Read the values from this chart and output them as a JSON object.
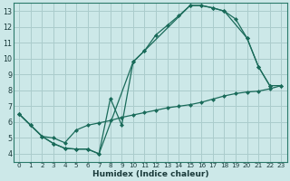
{
  "xlabel": "Humidex (Indice chaleur)",
  "bg_color": "#cce8e8",
  "grid_color": "#aacccc",
  "line_color": "#1a6b5a",
  "xlim": [
    -0.5,
    23.5
  ],
  "ylim": [
    3.5,
    13.5
  ],
  "xticks": [
    0,
    1,
    2,
    3,
    4,
    5,
    6,
    7,
    8,
    9,
    10,
    11,
    12,
    13,
    14,
    15,
    16,
    17,
    18,
    19,
    20,
    21,
    22,
    23
  ],
  "yticks": [
    4,
    5,
    6,
    7,
    8,
    9,
    10,
    11,
    12,
    13
  ],
  "line1_x": [
    0,
    1,
    2,
    3,
    4,
    5,
    6,
    7,
    8,
    9,
    10,
    11,
    12,
    13,
    14,
    15,
    16,
    17,
    18,
    19,
    20,
    21,
    22
  ],
  "line1_y": [
    6.5,
    5.8,
    5.1,
    4.65,
    4.35,
    4.3,
    4.3,
    4.0,
    7.5,
    5.8,
    9.8,
    10.5,
    11.5,
    12.1,
    12.7,
    13.35,
    13.35,
    13.2,
    13.0,
    12.5,
    11.3,
    9.5,
    8.3
  ],
  "line2_x": [
    0,
    1,
    2,
    3,
    4,
    5,
    6,
    7,
    10,
    11,
    15,
    16,
    17,
    18,
    20,
    21,
    22,
    23
  ],
  "line2_y": [
    6.5,
    5.8,
    5.1,
    4.65,
    4.35,
    4.3,
    4.3,
    4.0,
    9.8,
    10.5,
    13.35,
    13.35,
    13.2,
    13.0,
    11.3,
    9.5,
    8.3,
    8.3
  ],
  "line3_x": [
    0,
    1,
    2,
    3,
    4,
    5,
    6,
    7,
    8,
    9,
    10,
    11,
    12,
    13,
    14,
    15,
    16,
    17,
    18,
    19,
    20,
    21,
    22,
    23
  ],
  "line3_y": [
    6.5,
    5.8,
    5.1,
    5.0,
    4.7,
    5.5,
    5.8,
    5.95,
    6.1,
    6.3,
    6.45,
    6.6,
    6.75,
    6.9,
    7.0,
    7.1,
    7.25,
    7.45,
    7.65,
    7.8,
    7.9,
    7.95,
    8.1,
    8.3
  ]
}
